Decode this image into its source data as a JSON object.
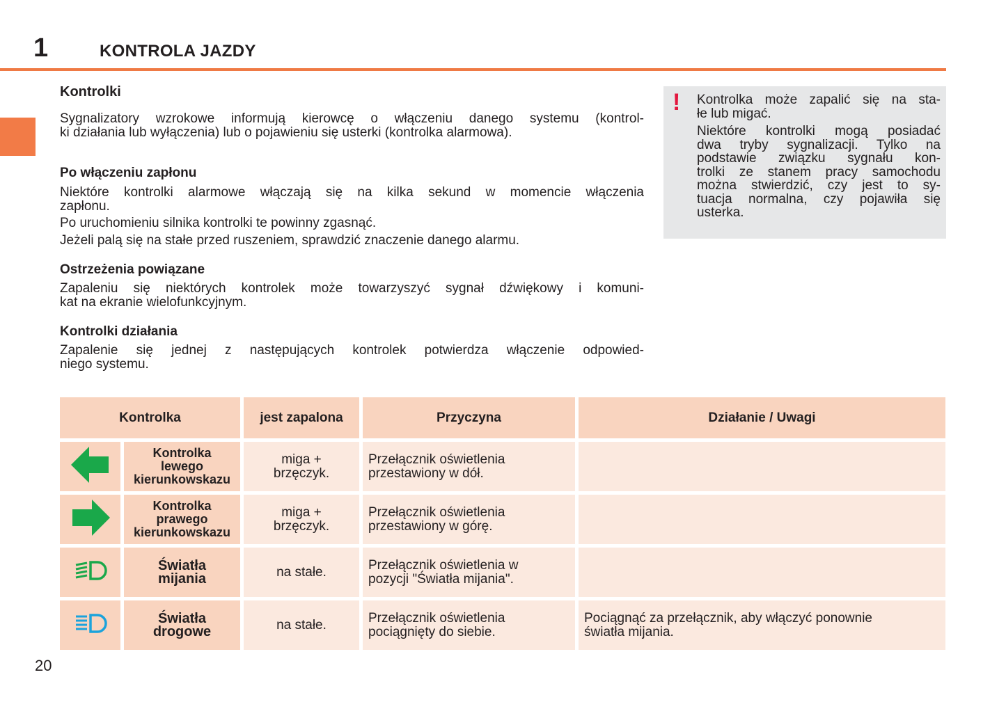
{
  "header": {
    "chapter_number": "1",
    "chapter_title": "KONTROLA JAZDY"
  },
  "colors": {
    "accent": "#ef7a45",
    "table_header": "#f9d4bf",
    "table_cell": "#fbe9df",
    "note_bg": "#e6e7e8",
    "warning": "#e3173e",
    "indicator_green": "#1aa84a",
    "indicator_blue": "#1ba3dc"
  },
  "sections": [
    {
      "heading": "Kontrolki",
      "lines": [
        "Sygnalizatory wzrokowe informują kierowcę o włączeniu danego systemu (kontrol-",
        "ki działania lub wyłączenia) lub o pojawieniu się usterki (kontrolka alarmowa)."
      ]
    },
    {
      "heading": "Po włączeniu zapłonu",
      "paragraphs": [
        [
          "Niektóre kontrolki alarmowe włączają się na kilka sekund w momencie włączenia",
          "zapłonu."
        ],
        [
          "Po uruchomieniu silnika kontrolki te powinny zgasnąć."
        ],
        [
          "Jeżeli palą się na stałe przed ruszeniem, sprawdzić znaczenie danego alarmu."
        ]
      ]
    },
    {
      "heading": "Ostrzeżenia powiązane",
      "lines": [
        "Zapaleniu się niektórych kontrolek może towarzyszyć sygnał dźwiękowy i komuni-",
        "kat na ekranie wielofunkcyjnym."
      ]
    },
    {
      "heading": "Kontrolki działania",
      "lines": [
        "Zapalenie się jednej z następujących kontrolek potwierdza włączenie odpowied-",
        "niego systemu."
      ]
    }
  ],
  "note": {
    "icon": "exclamation-icon",
    "icon_text": "!",
    "paragraphs": [
      [
        "Kontrolka może zapalić się na sta-",
        "łe lub migać."
      ],
      [
        "Niektóre kontrolki mogą posiadać",
        "dwa tryby sygnalizacji. Tylko na",
        "podstawie związku sygnału kon-",
        "trolki ze stanem pracy samochodu",
        "można stwierdzić, czy jest to sy-",
        "tuacja normalna, czy pojawiła się",
        "usterka."
      ]
    ]
  },
  "table": {
    "headers": [
      "Kontrolka",
      "jest zapalona",
      "Przyczyna",
      "Działanie / Uwagi"
    ],
    "rows": [
      {
        "icon": "left-arrow-icon",
        "name": [
          "Kontrolka",
          "lewego",
          "kierunkowskazu"
        ],
        "state": [
          "miga +",
          "brzęczyk."
        ],
        "cause": [
          "Przełącznik oświetlenia",
          "przestawiony w dół."
        ],
        "action": []
      },
      {
        "icon": "right-arrow-icon",
        "name": [
          "Kontrolka",
          "prawego",
          "kierunkowskazu"
        ],
        "state": [
          "miga +",
          "brzęczyk."
        ],
        "cause": [
          "Przełącznik oświetlenia",
          "przestawiony w górę."
        ],
        "action": []
      },
      {
        "icon": "low-beam-icon",
        "name": [
          "Światła",
          "mijania"
        ],
        "state": [
          "na stałe."
        ],
        "cause": [
          "Przełącznik oświetlenia w",
          "pozycji \"Światła mijania\"."
        ],
        "action": []
      },
      {
        "icon": "high-beam-icon",
        "name": [
          "Światła",
          "drogowe"
        ],
        "state": [
          "na stałe."
        ],
        "cause": [
          "Przełącznik oświetlenia",
          "pociągnięty do siebie."
        ],
        "action": [
          "Pociągnąć za przełącznik, aby włączyć ponownie",
          "światła mijania."
        ]
      }
    ]
  },
  "footer": {
    "page_number": "20"
  }
}
